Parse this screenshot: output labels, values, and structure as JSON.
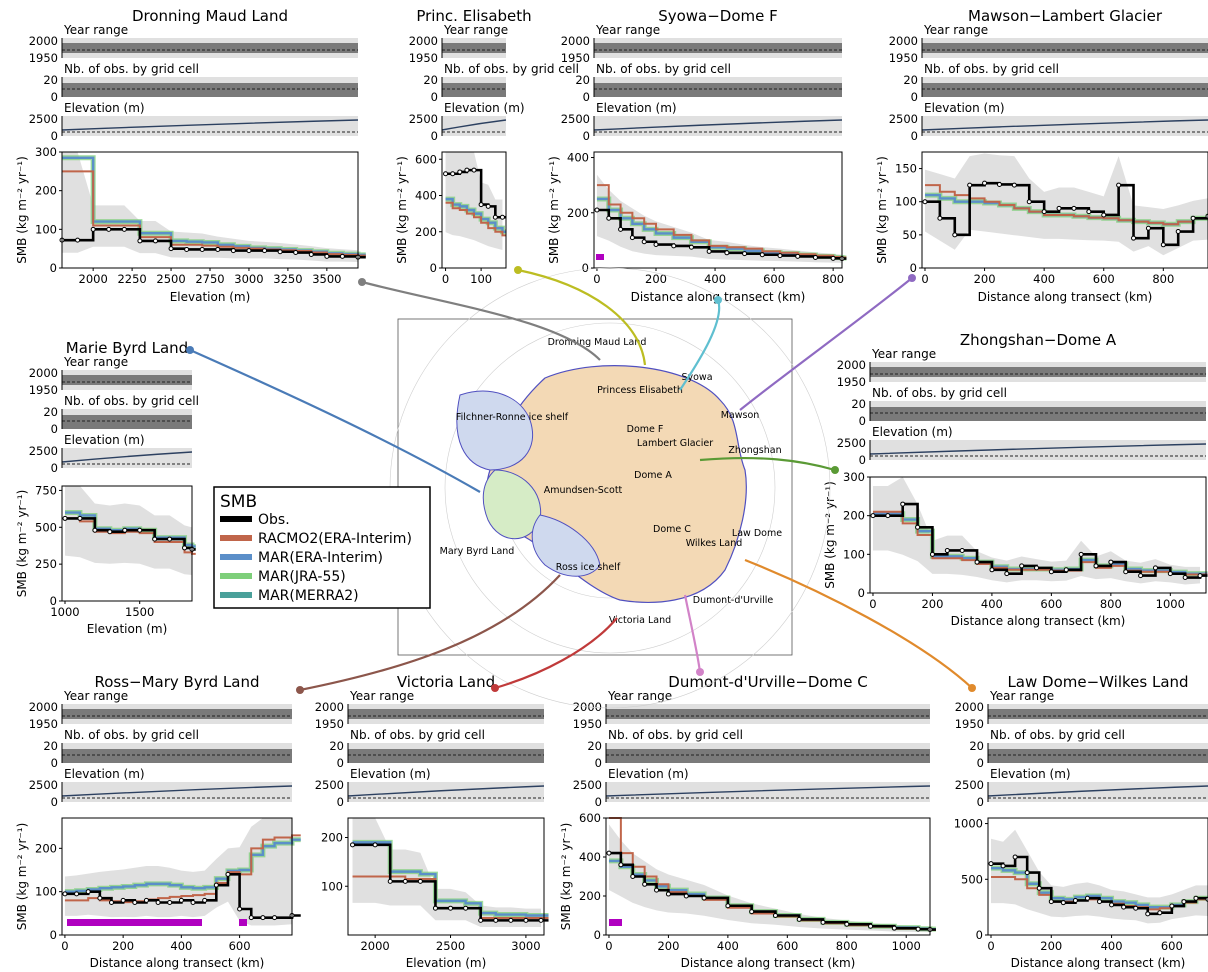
{
  "chart_data": [
    {
      "id": "dml",
      "type": "line",
      "title": "Dronning Maud Land",
      "xlabel": "Elevation (m)",
      "ylabel": "SMB (kg m⁻² yr⁻¹)",
      "xlim": [
        1800,
        3700
      ],
      "ylim": [
        0,
        300
      ],
      "xticks": [
        "2000",
        "2250",
        "2500",
        "2750",
        "3000",
        "3250",
        "3500"
      ],
      "yticks": [
        "0",
        "100",
        "200",
        "300"
      ],
      "x": [
        1800,
        1900,
        2000,
        2100,
        2200,
        2300,
        2400,
        2500,
        2600,
        2700,
        2800,
        2900,
        3000,
        3100,
        3200,
        3300,
        3400,
        3500,
        3600,
        3700
      ],
      "obs": [
        72,
        72,
        100,
        100,
        100,
        70,
        70,
        50,
        48,
        48,
        48,
        45,
        45,
        45,
        42,
        40,
        35,
        30,
        30,
        28
      ],
      "racmo": [
        250,
        250,
        110,
        110,
        110,
        80,
        80,
        60,
        60,
        58,
        55,
        52,
        50,
        48,
        46,
        44,
        40,
        36,
        34,
        32
      ],
      "mar": [
        285,
        285,
        120,
        120,
        120,
        90,
        90,
        70,
        68,
        66,
        60,
        56,
        52,
        50,
        48,
        45,
        42,
        38,
        36,
        34
      ]
    },
    {
      "id": "pe",
      "type": "line",
      "title": "Princ. Elisabeth",
      "xlabel": "",
      "ylabel": "SMB (kg m⁻² yr⁻¹)",
      "xlim": [
        -10,
        170
      ],
      "ylim": [
        0,
        640
      ],
      "xticks": [
        "0",
        "100"
      ],
      "yticks": [
        "0",
        "200",
        "400",
        "600"
      ],
      "x": [
        0,
        20,
        40,
        60,
        80,
        100,
        120,
        140,
        160
      ],
      "obs": [
        520,
        520,
        530,
        540,
        540,
        350,
        340,
        280,
        280
      ],
      "racmo": [
        360,
        330,
        320,
        300,
        280,
        250,
        220,
        200,
        180
      ],
      "mar": [
        380,
        350,
        340,
        320,
        300,
        270,
        250,
        220,
        200
      ]
    },
    {
      "id": "sdf",
      "type": "line",
      "title": "Syowa−Dome F",
      "xlabel": "Distance along transect (km)",
      "ylabel": "SMB (kg m⁻² yr⁻¹)",
      "xlim": [
        -10,
        830
      ],
      "ylim": [
        0,
        420
      ],
      "xticks": [
        "0",
        "200",
        "400",
        "600",
        "800"
      ],
      "yticks": [
        "0",
        "200",
        "400"
      ],
      "x": [
        0,
        40,
        80,
        120,
        160,
        200,
        260,
        320,
        380,
        440,
        500,
        560,
        620,
        680,
        740,
        800,
        830
      ],
      "obs": [
        210,
        180,
        140,
        110,
        95,
        85,
        80,
        75,
        60,
        55,
        52,
        48,
        45,
        42,
        38,
        35,
        34
      ],
      "racmo": [
        300,
        230,
        200,
        180,
        160,
        140,
        120,
        100,
        80,
        75,
        70,
        60,
        55,
        50,
        45,
        40,
        38
      ],
      "mar": [
        250,
        210,
        180,
        160,
        140,
        125,
        110,
        95,
        75,
        70,
        62,
        56,
        52,
        47,
        42,
        38,
        36
      ]
    },
    {
      "id": "mlg",
      "type": "line",
      "title": "Mawson−Lambert Glacier",
      "xlabel": "Distance along transect (km)",
      "ylabel": "SMB (kg m⁻² yr⁻¹)",
      "xlim": [
        -10,
        950
      ],
      "ylim": [
        0,
        175
      ],
      "xticks": [
        "0",
        "200",
        "400",
        "600",
        "800"
      ],
      "yticks": [
        "0",
        "50",
        "100",
        "150"
      ],
      "x": [
        0,
        50,
        100,
        150,
        200,
        250,
        300,
        350,
        400,
        450,
        500,
        550,
        600,
        650,
        700,
        750,
        800,
        850,
        900,
        950
      ],
      "obs": [
        100,
        75,
        50,
        125,
        128,
        126,
        125,
        100,
        85,
        90,
        90,
        85,
        80,
        125,
        45,
        60,
        35,
        55,
        75,
        78
      ],
      "racmo": [
        125,
        115,
        110,
        105,
        100,
        95,
        90,
        85,
        80,
        80,
        78,
        76,
        75,
        72,
        70,
        68,
        66,
        70,
        75,
        80
      ],
      "mar": [
        110,
        105,
        100,
        100,
        98,
        95,
        90,
        85,
        80,
        80,
        78,
        76,
        75,
        72,
        70,
        68,
        66,
        70,
        75,
        78
      ]
    },
    {
      "id": "mbl",
      "type": "line",
      "title": "Marie Byrd Land",
      "xlabel": "Elevation (m)",
      "ylabel": "SMB (kg m⁻² yr⁻¹)",
      "xlim": [
        980,
        1850
      ],
      "ylim": [
        0,
        780
      ],
      "xticks": [
        "1000",
        "1500"
      ],
      "yticks": [
        "0",
        "250",
        "500",
        "750"
      ],
      "x": [
        1000,
        1100,
        1200,
        1300,
        1400,
        1500,
        1600,
        1700,
        1800,
        1850
      ],
      "obs": [
        560,
        560,
        480,
        470,
        480,
        480,
        420,
        420,
        360,
        350
      ],
      "racmo": [
        560,
        540,
        470,
        460,
        470,
        460,
        400,
        400,
        330,
        320
      ],
      "mar": [
        600,
        580,
        490,
        480,
        490,
        480,
        430,
        430,
        380,
        370
      ]
    },
    {
      "id": "zda",
      "type": "line",
      "title": "Zhongshan−Dome A",
      "xlabel": "Distance along transect (km)",
      "ylabel": "SMB (kg m⁻² yr⁻¹)",
      "xlim": [
        -10,
        1120
      ],
      "ylim": [
        0,
        300
      ],
      "xticks": [
        "0",
        "200",
        "400",
        "600",
        "800",
        "1000"
      ],
      "yticks": [
        "0",
        "100",
        "200",
        "300"
      ],
      "x": [
        0,
        50,
        100,
        150,
        200,
        250,
        300,
        350,
        400,
        450,
        500,
        550,
        600,
        650,
        700,
        750,
        800,
        850,
        900,
        950,
        1000,
        1050,
        1100
      ],
      "obs": [
        200,
        200,
        230,
        170,
        100,
        110,
        110,
        80,
        60,
        50,
        70,
        65,
        55,
        60,
        100,
        70,
        80,
        55,
        45,
        65,
        50,
        40,
        45
      ],
      "racmo": [
        210,
        210,
        180,
        150,
        90,
        90,
        85,
        75,
        65,
        60,
        60,
        60,
        58,
        58,
        80,
        65,
        70,
        58,
        55,
        55,
        50,
        48,
        48
      ],
      "mar": [
        205,
        205,
        190,
        160,
        95,
        95,
        90,
        80,
        68,
        62,
        62,
        62,
        60,
        62,
        85,
        70,
        75,
        62,
        58,
        58,
        54,
        50,
        50
      ]
    },
    {
      "id": "rmb",
      "type": "line",
      "title": "Ross−Mary Byrd Land",
      "xlabel": "Distance along transect (km)",
      "ylabel": "SMB (kg m⁻² yr⁻¹)",
      "xlim": [
        -10,
        780
      ],
      "ylim": [
        0,
        270
      ],
      "xticks": [
        "0",
        "200",
        "400",
        "600"
      ],
      "yticks": [
        "0",
        "100",
        "200"
      ],
      "x": [
        0,
        40,
        80,
        120,
        160,
        200,
        240,
        280,
        320,
        360,
        400,
        440,
        480,
        520,
        560,
        600,
        640,
        680,
        720,
        780
      ],
      "obs": [
        95,
        95,
        100,
        85,
        75,
        80,
        75,
        80,
        75,
        75,
        80,
        75,
        80,
        115,
        140,
        60,
        40,
        40,
        40,
        45
      ],
      "racmo": [
        80,
        80,
        85,
        80,
        78,
        76,
        78,
        82,
        85,
        88,
        90,
        92,
        95,
        120,
        145,
        140,
        200,
        220,
        225,
        230
      ],
      "mar": [
        100,
        102,
        105,
        108,
        110,
        112,
        115,
        118,
        118,
        115,
        110,
        108,
        110,
        130,
        148,
        150,
        185,
        205,
        212,
        220
      ]
    },
    {
      "id": "vl",
      "type": "line",
      "title": "Victoria Land",
      "xlabel": "Elevation (m)",
      "ylabel": "",
      "xlim": [
        1820,
        3120
      ],
      "ylim": [
        0,
        240
      ],
      "xticks": [
        "2000",
        "2500",
        "3000"
      ],
      "yticks": [
        "100",
        "200"
      ],
      "x": [
        1850,
        2000,
        2100,
        2200,
        2300,
        2400,
        2500,
        2600,
        2700,
        2800,
        2900,
        3000,
        3100
      ],
      "obs": [
        185,
        185,
        110,
        110,
        110,
        55,
        55,
        55,
        30,
        30,
        30,
        30,
        30
      ],
      "racmo": [
        120,
        120,
        120,
        115,
        115,
        55,
        55,
        55,
        35,
        35,
        35,
        35,
        35
      ],
      "mar": [
        190,
        190,
        130,
        130,
        125,
        70,
        70,
        65,
        45,
        42,
        42,
        40,
        40
      ]
    },
    {
      "id": "ddc",
      "type": "line",
      "title": "Dumont-d'Urville−Dome C",
      "xlabel": "Distance along transect (km)",
      "ylabel": "SMB (kg m⁻² yr⁻¹)",
      "xlim": [
        -10,
        1080
      ],
      "ylim": [
        0,
        600
      ],
      "xticks": [
        "0",
        "200",
        "400",
        "600",
        "800",
        "1000"
      ],
      "yticks": [
        "0",
        "200",
        "400",
        "600"
      ],
      "x": [
        0,
        40,
        80,
        120,
        160,
        200,
        260,
        320,
        400,
        480,
        560,
        640,
        720,
        800,
        880,
        960,
        1040,
        1080
      ],
      "obs": [
        420,
        360,
        300,
        260,
        230,
        210,
        200,
        190,
        150,
        120,
        100,
        80,
        65,
        55,
        45,
        35,
        30,
        28
      ],
      "racmo": [
        600,
        420,
        350,
        300,
        260,
        220,
        200,
        180,
        140,
        110,
        95,
        75,
        60,
        50,
        42,
        32,
        28,
        26
      ],
      "mar": [
        380,
        350,
        310,
        280,
        250,
        230,
        210,
        190,
        150,
        120,
        100,
        80,
        65,
        55,
        45,
        38,
        32,
        30
      ]
    },
    {
      "id": "ldw",
      "type": "line",
      "title": "Law Dome−Wilkes Land",
      "xlabel": "Distance along transect (km)",
      "ylabel": "",
      "xlim": [
        -10,
        720
      ],
      "ylim": [
        0,
        1050
      ],
      "xticks": [
        "0",
        "200",
        "400",
        "600"
      ],
      "yticks": [
        "0",
        "500",
        "1000"
      ],
      "x": [
        0,
        40,
        80,
        120,
        160,
        200,
        240,
        280,
        320,
        360,
        400,
        440,
        480,
        520,
        560,
        600,
        640,
        680,
        720
      ],
      "obs": [
        640,
        620,
        700,
        560,
        420,
        300,
        290,
        310,
        330,
        300,
        270,
        250,
        240,
        190,
        200,
        260,
        300,
        330,
        320
      ],
      "racmo": [
        520,
        520,
        500,
        420,
        360,
        300,
        300,
        310,
        320,
        300,
        280,
        260,
        250,
        230,
        240,
        260,
        290,
        320,
        310
      ],
      "mar": [
        600,
        580,
        560,
        460,
        380,
        330,
        320,
        340,
        350,
        330,
        300,
        290,
        270,
        250,
        250,
        270,
        300,
        330,
        330
      ]
    }
  ],
  "panel_labels": {
    "year_range": "Year range",
    "nb_obs": "Nb. of obs. by grid cell",
    "elevation": "Elevation (m)"
  },
  "strip_ticks": {
    "year": [
      "2000",
      "1950"
    ],
    "nb": [
      "20",
      "0"
    ],
    "elev": [
      "2500",
      "0"
    ]
  },
  "legend": {
    "title": "SMB",
    "items": [
      {
        "label": "Obs.",
        "color": "#000000"
      },
      {
        "label": "RACMO2(ERA-Interim)",
        "color": "#c0654a"
      },
      {
        "label": "MAR(ERA-Interim)",
        "color": "#5b8fc9"
      },
      {
        "label": "MAR(JRA-55)",
        "color": "#7ecf7a"
      },
      {
        "label": "MAR(MERRA2)",
        "color": "#4aa09a"
      }
    ]
  },
  "map_labels": [
    "Dronning Maud Land",
    "Princess Elisabeth",
    "Syowa",
    "Filchner-Ronne ice shelf",
    "Dome F",
    "Lambert Glacier",
    "Mawson",
    "Zhongshan",
    "Dome A",
    "Amundsen-Scott",
    "Mary Byrd Land",
    "Dome C",
    "Wilkes Land",
    "Law Dome",
    "Ross ice shelf",
    "Victoria Land",
    "Dumont-d'Urville"
  ],
  "colors": {
    "grey_band": "#e0e0e0",
    "dark_band": "#7a7a7a",
    "arrow_dml": "#7f7f7f",
    "arrow_pe": "#bcbd22",
    "arrow_sdf": "#5fbfd0",
    "arrow_mlg": "#8f6ac2",
    "arrow_zda": "#5a9a35",
    "arrow_mbl": "#4a7bb7",
    "arrow_rmb": "#8c564b",
    "arrow_vl": "#c03a3a",
    "arrow_ddc": "#d283c8",
    "arrow_ldw": "#e08a2c",
    "purple_bar": "#b000c0"
  }
}
